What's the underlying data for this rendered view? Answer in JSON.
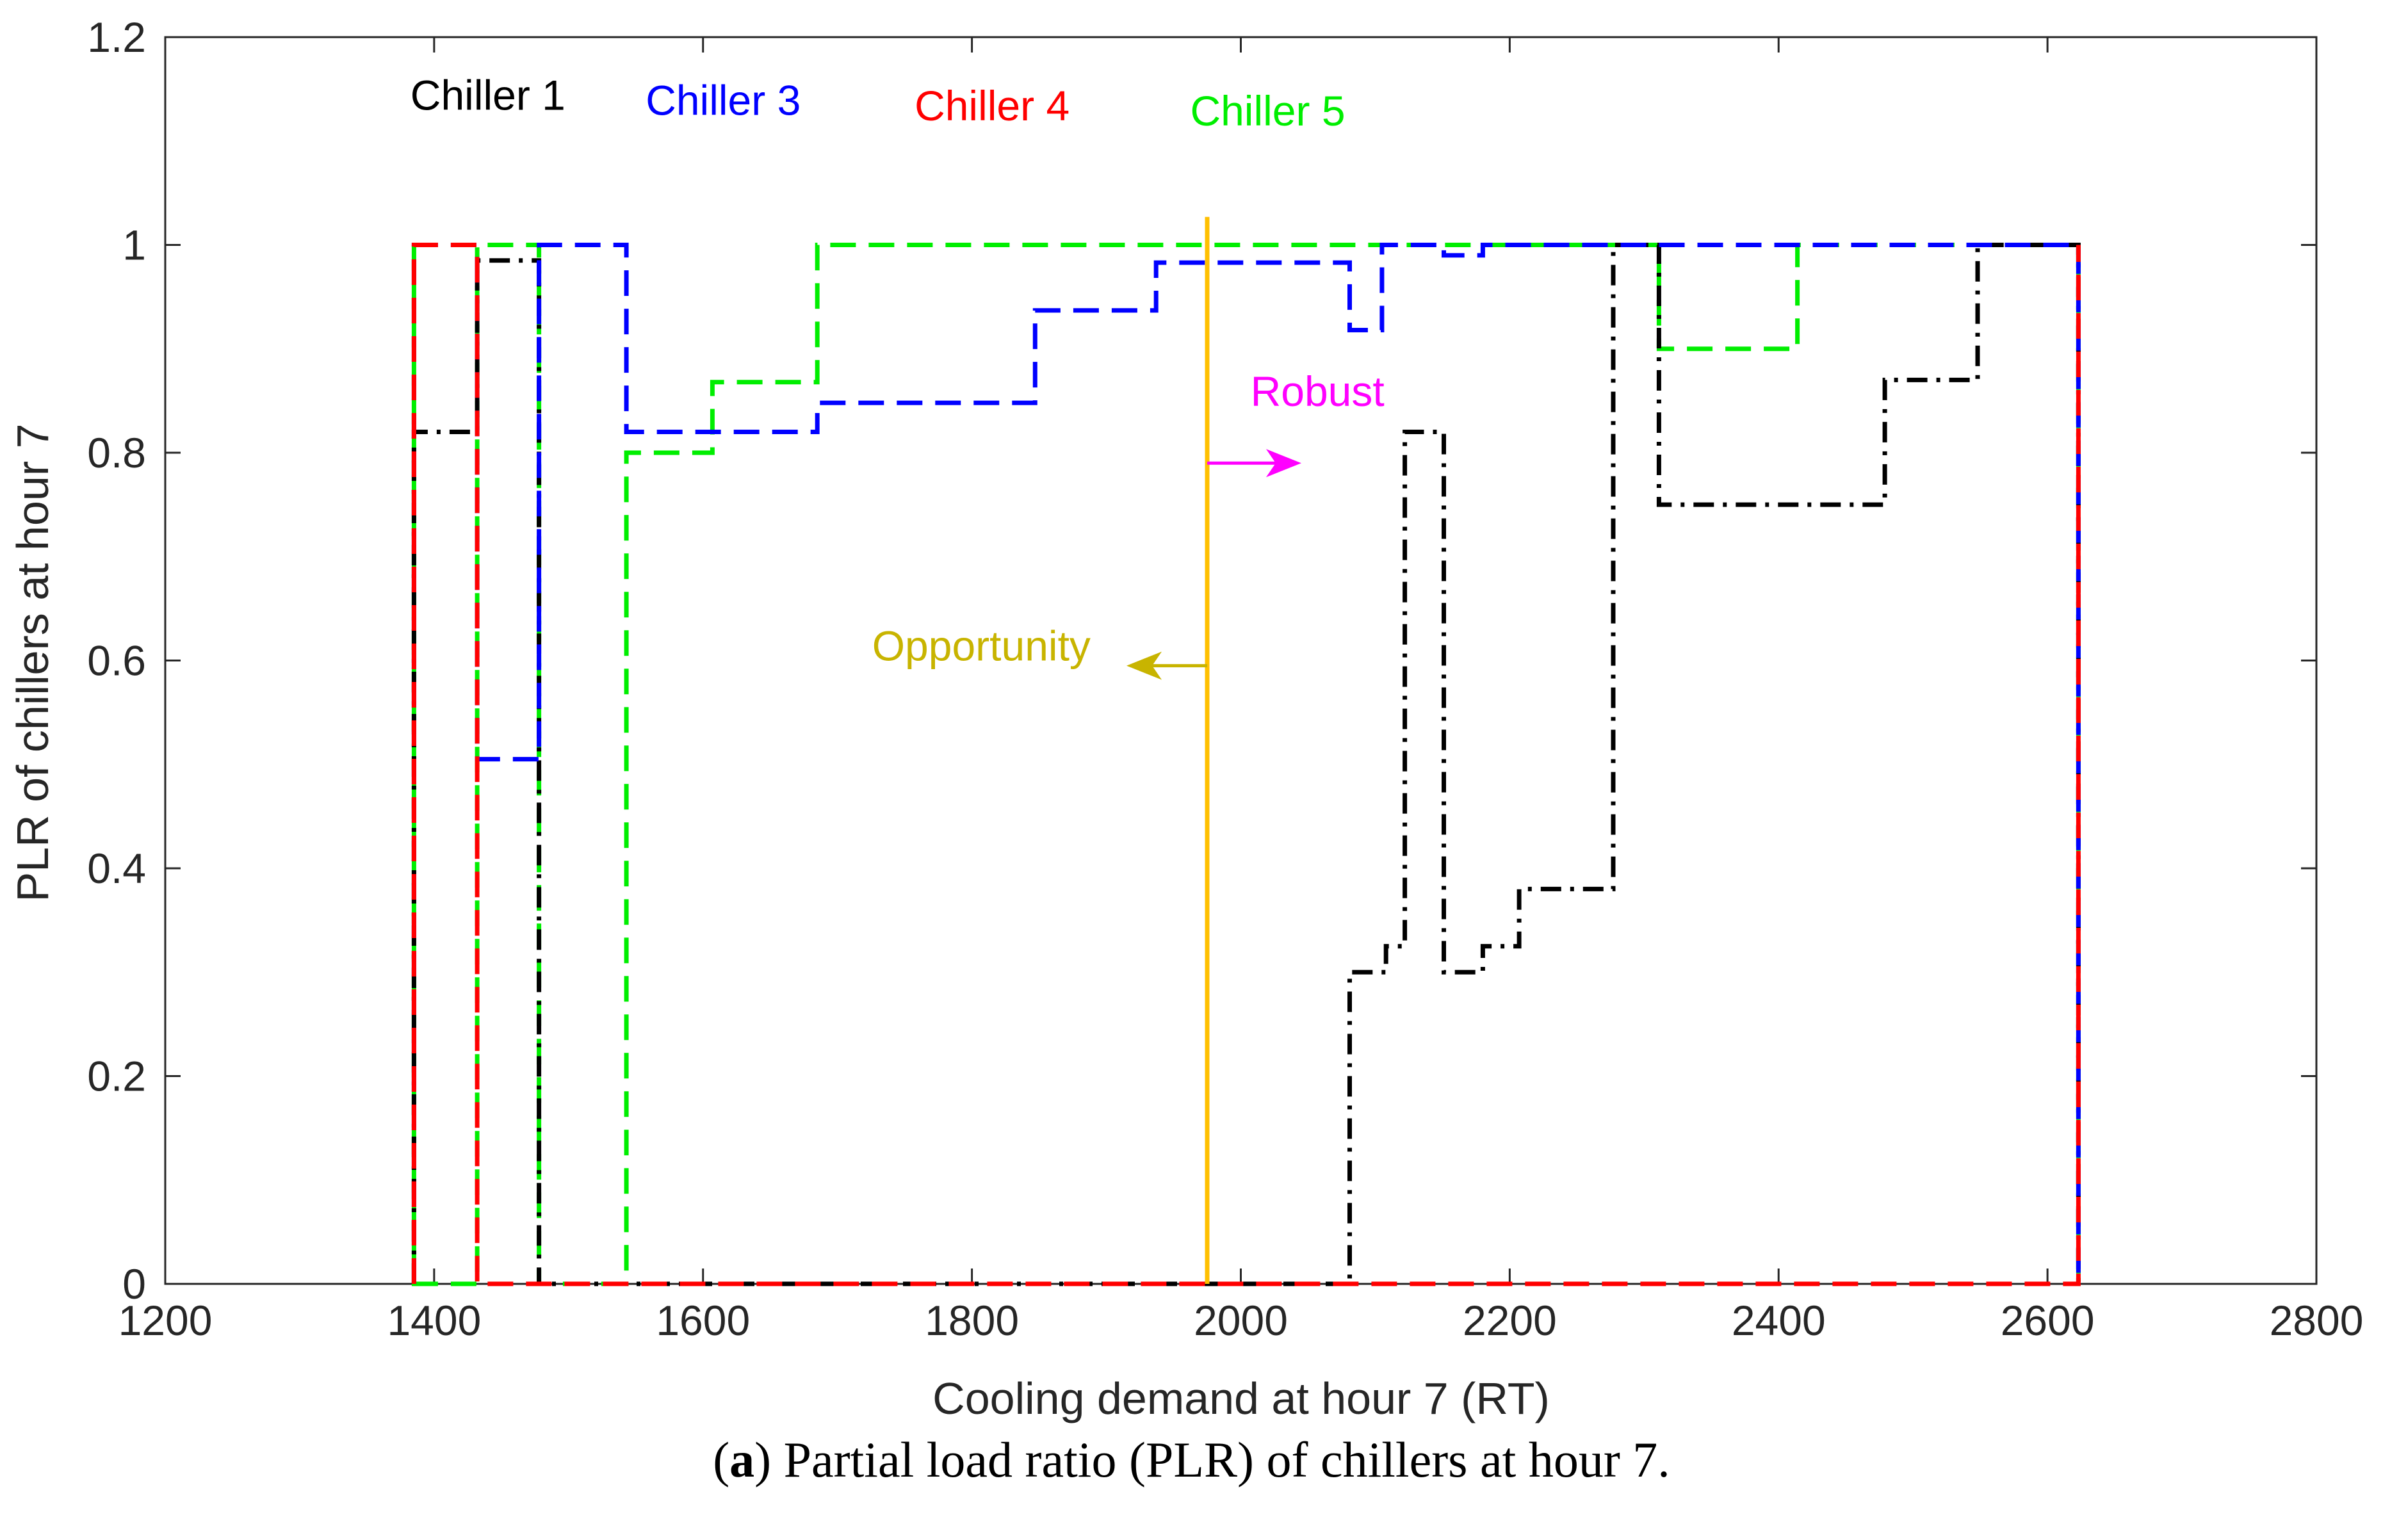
{
  "chart_data": {
    "type": "line",
    "title": "",
    "xlabel": "Cooling demand at hour 7 (RT)",
    "ylabel": "PLR of chillers at hour 7",
    "xlim": [
      1200,
      2800
    ],
    "ylim": [
      0,
      1.2
    ],
    "xticks": [
      1200,
      1400,
      1600,
      1800,
      2000,
      2200,
      2400,
      2600,
      2800
    ],
    "yticks": [
      0,
      0.2,
      0.4,
      0.6,
      0.8,
      1,
      1.2
    ],
    "xtick_labels": [
      "1200",
      "1400",
      "1600",
      "1800",
      "2000",
      "2200",
      "2400",
      "2600",
      "2800"
    ],
    "ytick_labels": [
      "0",
      "0.2",
      "0.4",
      "0.6",
      "0.8",
      "1",
      "1.2"
    ],
    "series": [
      {
        "name": "Chiller 1",
        "color": "#000000",
        "dash": "dashdot",
        "x": [
          1385,
          1385,
          1432,
          1432,
          1478,
          1478,
          2081,
          2081,
          2108,
          2108,
          2122,
          2122,
          2151,
          2151,
          2180,
          2180,
          2207,
          2207,
          2277,
          2277,
          2311,
          2311,
          2479,
          2479,
          2548,
          2548,
          2623,
          2623
        ],
        "y": [
          0,
          0.82,
          0.82,
          0.985,
          0.985,
          0,
          0,
          0.3,
          0.3,
          0.325,
          0.325,
          0.82,
          0.82,
          0.3,
          0.3,
          0.325,
          0.325,
          0.38,
          0.38,
          1,
          1,
          0.75,
          0.75,
          0.87,
          0.87,
          1,
          1,
          0
        ]
      },
      {
        "name": "Chiller 3",
        "color": "#0000ff",
        "dash": "dashed",
        "x": [
          1385,
          1385,
          1432,
          1432,
          1478,
          1478,
          1543,
          1543,
          1685,
          1685,
          1847,
          1847,
          1937,
          1937,
          2081,
          2081,
          2105,
          2105,
          2151,
          2151,
          2180,
          2180,
          2623,
          2623
        ],
        "y": [
          0,
          1,
          1,
          0.505,
          0.505,
          1,
          1,
          0.82,
          0.82,
          0.848,
          0.848,
          0.937,
          0.937,
          0.983,
          0.983,
          0.918,
          0.918,
          1,
          1,
          0.99,
          0.99,
          1,
          1,
          0
        ]
      },
      {
        "name": "Chiller 4",
        "color": "#ff0000",
        "dash": "dashed",
        "x": [
          1385,
          1385,
          1432,
          1432,
          2623,
          2623
        ],
        "y": [
          0,
          1,
          1,
          0,
          0,
          1
        ]
      },
      {
        "name": "Chiller 5",
        "color": "#00ee00",
        "dash": "dashed",
        "x": [
          1385,
          1385,
          1432,
          1432,
          1478,
          1478,
          1543,
          1543,
          1607,
          1607,
          1685,
          1685,
          2311,
          2311,
          2414,
          2414,
          2623,
          2623
        ],
        "y": [
          1,
          0,
          0,
          1,
          1,
          0,
          0,
          0.8,
          0.8,
          0.868,
          0.868,
          1,
          1,
          0.9,
          0.9,
          1,
          1,
          0
        ]
      }
    ],
    "legend_labels": [
      {
        "text": "Chiller 1",
        "color": "#000000",
        "x": 1440,
        "y": 1.13
      },
      {
        "text": "Chiller 3",
        "color": "#0000ff",
        "x": 1615,
        "y": 1.125
      },
      {
        "text": "Chiller 4",
        "color": "#ff0000",
        "x": 1815,
        "y": 1.12
      },
      {
        "text": "Chiller 5",
        "color": "#00ee00",
        "x": 2020,
        "y": 1.115
      }
    ],
    "annotations": {
      "threshold": {
        "x": 1975,
        "color": "#ffc000"
      },
      "robust": {
        "text": "Robust",
        "color": "#ff00ff",
        "arrow_from": 1975,
        "arrow_to": 2045,
        "y": 0.79
      },
      "opportunity": {
        "text": "Opportunity",
        "color": "#c8b400",
        "arrow_from": 1975,
        "arrow_to": 1915,
        "y": 0.595
      }
    }
  },
  "caption": {
    "label": "a",
    "text": ") Partial load ratio (PLR) of chillers at hour 7."
  }
}
